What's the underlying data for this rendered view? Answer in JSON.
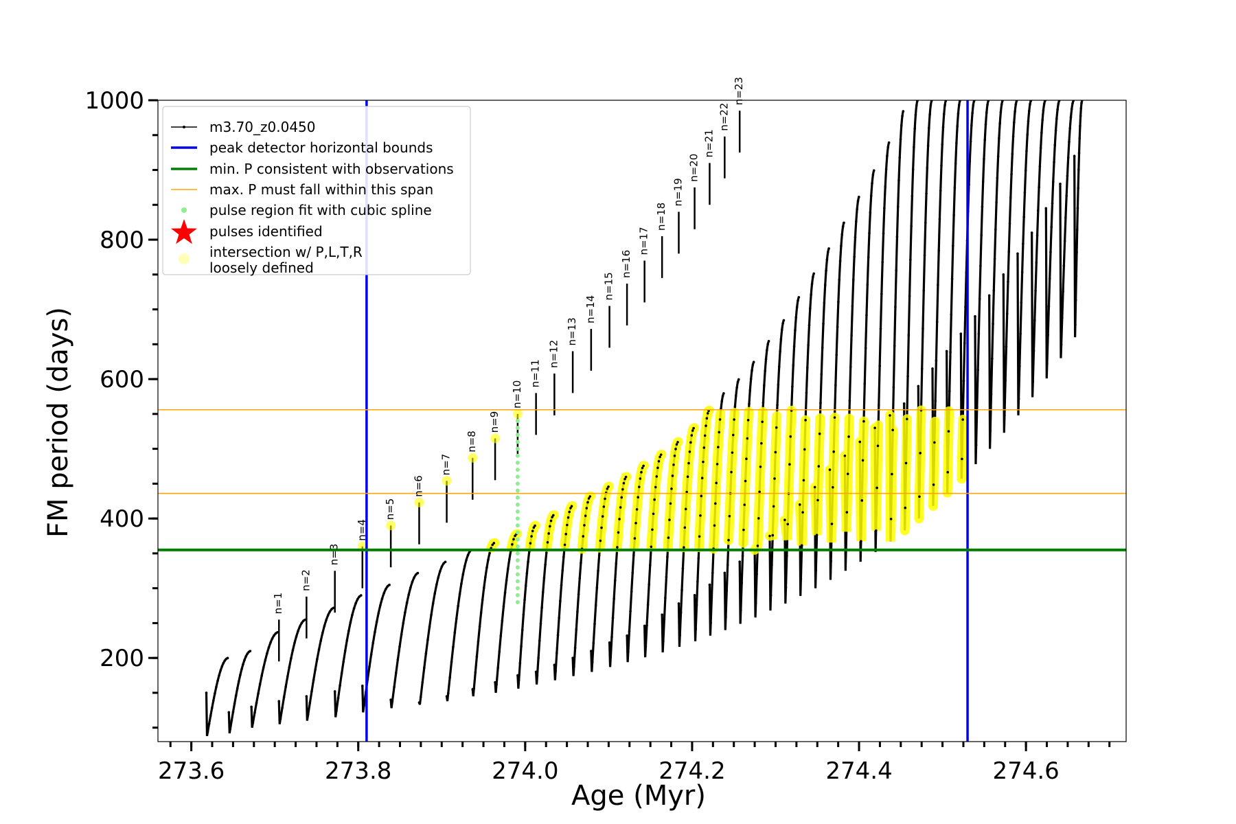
{
  "chart_data": {
    "type": "line",
    "xlabel": "Age (Myr)",
    "ylabel": "FM period (days)",
    "xlim": [
      273.56,
      274.72
    ],
    "ylim": [
      80,
      1000
    ],
    "x_major_ticks": [
      273.6,
      273.8,
      274.0,
      274.2,
      274.4,
      274.6
    ],
    "x_tick_labels": [
      "273.6",
      "273.8",
      "274.0",
      "274.2",
      "274.4",
      "274.6"
    ],
    "x_minor_step": 0.025,
    "y_major_ticks": [
      200,
      400,
      600,
      800,
      1000
    ],
    "y_tick_labels": [
      "200",
      "400",
      "600",
      "800",
      "1000"
    ],
    "y_minor_step": 50,
    "grid": false,
    "legend_position": "top-left",
    "reference_lines": {
      "vertical_blue": [
        273.81,
        274.53
      ],
      "horizontal_green": 355,
      "horizontal_orange": [
        436,
        556
      ]
    },
    "series": [
      {
        "name": "m3.70_z0.0450",
        "color": "#000000",
        "pulse_ages": [
          273.618,
          273.645,
          273.672,
          273.705,
          273.738,
          273.772,
          273.805,
          273.839,
          273.873,
          273.906,
          273.937,
          273.964,
          273.991,
          274.013,
          274.035,
          274.057,
          274.079,
          274.101,
          274.122,
          274.143,
          274.164,
          274.184,
          274.203,
          274.221,
          274.239,
          274.257,
          274.275,
          274.293,
          274.311,
          274.329,
          274.347,
          274.365,
          274.383,
          274.401,
          274.419,
          274.437,
          274.454,
          274.471,
          274.488,
          274.505,
          274.522,
          274.539,
          274.556,
          274.573,
          274.59,
          274.607,
          274.624,
          274.641,
          274.658
        ],
        "pulse_start_periods": [
          150,
          122,
          130,
          138,
          145,
          152,
          160,
          140,
          136,
          145,
          155,
          165,
          175,
          180,
          190,
          200,
          210,
          222,
          232,
          246,
          262,
          278,
          290,
          305,
          322,
          338,
          355,
          375,
          398,
          420,
          445,
          470,
          490,
          510,
          530,
          548,
          565,
          590,
          615,
          640,
          665,
          690,
          720,
          750,
          780,
          810,
          845,
          880,
          920
        ],
        "pulse_peak_periods": [
          200,
          210,
          237,
          255,
          272,
          290,
          305,
          322,
          338,
          355,
          365,
          378,
          390,
          405,
          418,
          432,
          446,
          460,
          476,
          492,
          510,
          530,
          555,
          580,
          600,
          625,
          655,
          685,
          718,
          752,
          788,
          825,
          862,
          900,
          940,
          985,
          1000,
          1000,
          1000,
          1000,
          1000,
          1000,
          1000,
          1000,
          1000,
          1000,
          1000,
          1000,
          1000
        ],
        "pulse_trough_periods": [
          88,
          92,
          100,
          105,
          110,
          115,
          122,
          128,
          133,
          138,
          145,
          150,
          156,
          162,
          168,
          174,
          180,
          187,
          194,
          201,
          208,
          216,
          224,
          232,
          240,
          249,
          258,
          268,
          278,
          289,
          300,
          312,
          325,
          338,
          352,
          367,
          383,
          400,
          418,
          437,
          457,
          478,
          500,
          523,
          548,
          574,
          601,
          630,
          660
        ]
      }
    ],
    "spikes": [
      {
        "label": "n=1",
        "age": 273.705,
        "period": 255
      },
      {
        "label": "n=2",
        "age": 273.738,
        "period": 288
      },
      {
        "label": "n=3",
        "age": 273.772,
        "period": 325
      },
      {
        "label": "n=4",
        "age": 273.805,
        "period": 360
      },
      {
        "label": "n=5",
        "age": 273.839,
        "period": 390
      },
      {
        "label": "n=6",
        "age": 273.873,
        "period": 423
      },
      {
        "label": "n=7",
        "age": 273.906,
        "period": 454
      },
      {
        "label": "n=8",
        "age": 273.937,
        "period": 487
      },
      {
        "label": "n=9",
        "age": 273.964,
        "period": 515
      },
      {
        "label": "n=10",
        "age": 273.991,
        "period": 550
      },
      {
        "label": "n=11",
        "age": 274.013,
        "period": 580
      },
      {
        "label": "n=12",
        "age": 274.035,
        "period": 608
      },
      {
        "label": "n=13",
        "age": 274.057,
        "period": 640
      },
      {
        "label": "n=14",
        "age": 274.079,
        "period": 672
      },
      {
        "label": "n=15",
        "age": 274.101,
        "period": 705
      },
      {
        "label": "n=16",
        "age": 274.122,
        "period": 737
      },
      {
        "label": "n=17",
        "age": 274.143,
        "period": 770
      },
      {
        "label": "n=18",
        "age": 274.164,
        "period": 805
      },
      {
        "label": "n=19",
        "age": 274.184,
        "period": 840
      },
      {
        "label": "n=20",
        "age": 274.203,
        "period": 875
      },
      {
        "label": "n=21",
        "age": 274.221,
        "period": 910
      },
      {
        "label": "n=22",
        "age": 274.239,
        "period": 948
      },
      {
        "label": "n=23",
        "age": 274.257,
        "period": 985
      }
    ],
    "spline_region": {
      "age": 273.991,
      "period_range": [
        280,
        545
      ]
    },
    "legend": [
      {
        "label": "m3.70_z0.0450",
        "marker": "line-dot",
        "color": "#000000"
      },
      {
        "label": "peak detector horizontal bounds",
        "marker": "line",
        "color": "#0000ee"
      },
      {
        "label": "min. P consistent with observations",
        "marker": "line",
        "color": "#007f00"
      },
      {
        "label": "max. P must fall within this span",
        "marker": "thin-line",
        "color": "#ffa500"
      },
      {
        "label": "pulse region fit with cubic spline",
        "marker": "dot",
        "color": "#90ee90"
      },
      {
        "label": "pulses identified",
        "marker": "star",
        "color": "#ff0000"
      },
      {
        "label": "intersection w/ P,L,T,R",
        "label2": "loosely defined",
        "marker": "circle",
        "color": "#ffff99"
      }
    ],
    "colors": {
      "blue": "#0000ee",
      "green": "#007f00",
      "orange": "#ffa500",
      "yellow": "#ffff00",
      "lightgreen": "#90ee90",
      "red": "#ff0000"
    }
  }
}
